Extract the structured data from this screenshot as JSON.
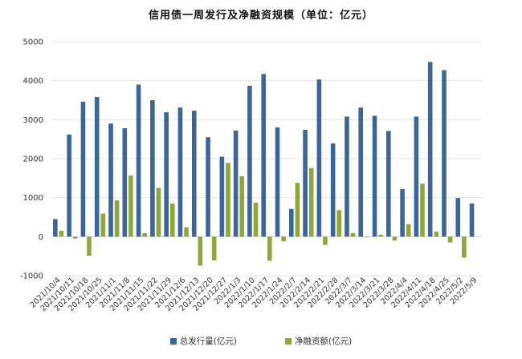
{
  "chart_data": {
    "type": "bar",
    "title": "信用债一周发行及净融资规模（单位：亿元）",
    "categories": [
      "2021/10/4",
      "2021/10/11",
      "2021/10/18",
      "2021/10/25",
      "2021/11/1",
      "2021/11/8",
      "2021/11/15",
      "2021/11/22",
      "2021/11/29",
      "2021/12/6",
      "2021/12/13",
      "2021/12/20",
      "2021/12/27",
      "2022/1/3",
      "2022/1/10",
      "2022/1/17",
      "2022/1/24",
      "2022/2/7",
      "2022/2/14",
      "2022/2/21",
      "2022/2/28",
      "2022/3/7",
      "2022/3/14",
      "2022/3/21",
      "2022/3/28",
      "2022/4/4",
      "2022/4/11",
      "2022/4/18",
      "2022/4/25",
      "2022/5/2",
      "2022/5/9"
    ],
    "series": [
      {
        "name": "总发行量(亿元)",
        "color": "#3d6597",
        "values": [
          450,
          2620,
          3460,
          3580,
          2900,
          2780,
          3900,
          3500,
          3190,
          3310,
          3230,
          2550,
          2050,
          2720,
          3870,
          4170,
          2800,
          710,
          2740,
          4030,
          2390,
          3080,
          3310,
          3100,
          2710,
          1220,
          3080,
          4480,
          4270,
          990,
          850
        ]
      },
      {
        "name": "净融资额(亿元)",
        "color": "#8ca83c",
        "values": [
          150,
          -50,
          -490,
          590,
          930,
          1570,
          90,
          1250,
          850,
          240,
          -740,
          -610,
          1890,
          1550,
          870,
          -620,
          -120,
          1380,
          1760,
          -210,
          680,
          90,
          0,
          50,
          -100,
          320,
          1360,
          130,
          -150,
          -540,
          null
        ]
      }
    ],
    "ylim": [
      -1000,
      5000
    ],
    "yticks": [
      -1000,
      0,
      1000,
      2000,
      3000,
      4000,
      5000
    ],
    "xtick_labels": [
      "2021/10/4",
      "2021/10/11",
      "2021/10/18",
      "2021/10/25",
      "2021/11/1",
      "2021/11/8",
      "2021/11/15",
      "2021/11/22",
      "2021/11/29",
      "2021/12/6",
      "2021/12/13",
      "2021/12/20",
      "2021/12/27",
      "2022/1/3",
      "2022/1/10",
      "2022/1/17",
      "2022/1/24",
      "2022/2/7",
      "2022/2/14",
      "2022/2/21",
      "2022/2/28",
      "2022/3/7",
      "2022/3/14",
      "2022/3/21",
      "2022/3/28",
      "2022/4/4",
      "2022/4/11",
      "2022/4/18",
      "2022/4/25",
      "2022/5/2",
      "2022/5/9"
    ],
    "grid": true,
    "legend_position": "bottom"
  }
}
